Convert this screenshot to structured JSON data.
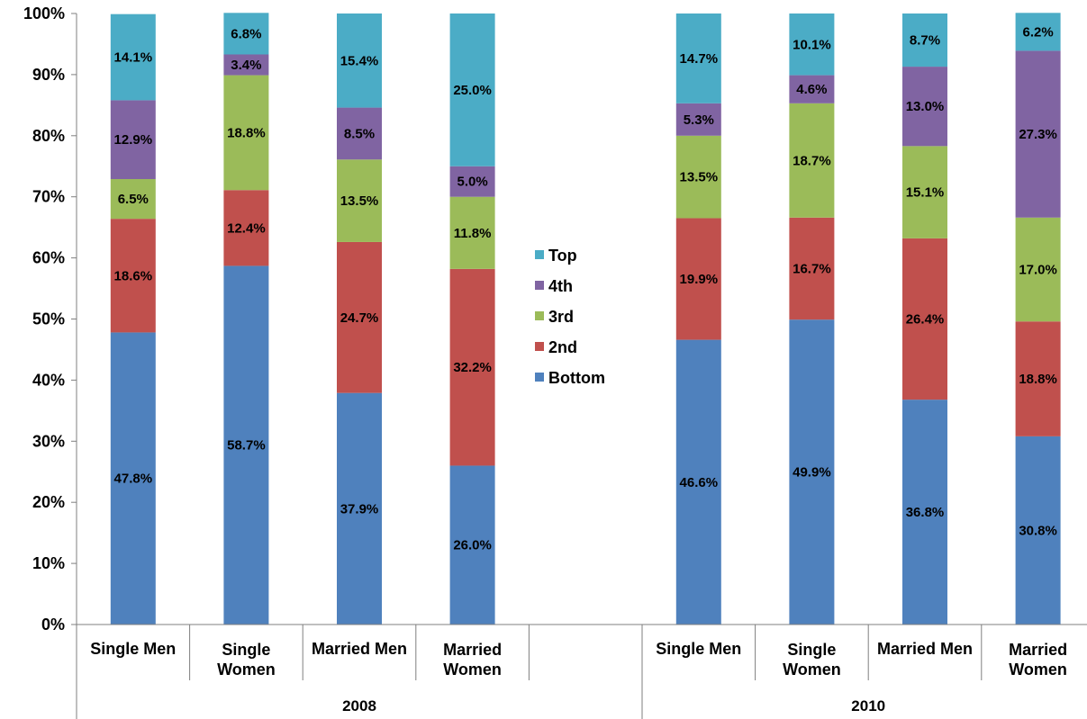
{
  "chart_data": {
    "type": "bar",
    "stacked": true,
    "percent": true,
    "ylim": [
      0,
      100
    ],
    "yticks": [
      "0%",
      "10%",
      "20%",
      "30%",
      "40%",
      "50%",
      "60%",
      "70%",
      "80%",
      "90%",
      "100%"
    ],
    "grid": false,
    "legend_position": "center",
    "groups": [
      {
        "label": "2008",
        "categories": [
          "Single Men",
          "Single Women",
          "Married Men",
          "Married Women"
        ]
      },
      {
        "label": "2010",
        "categories": [
          "Single Men",
          "Single Women",
          "Married Men",
          "Married Women"
        ]
      }
    ],
    "series": [
      {
        "name": "Bottom",
        "color": "#4f81bd",
        "values": [
          47.8,
          58.7,
          37.9,
          26.0,
          46.6,
          49.9,
          36.8,
          30.8
        ],
        "labels": [
          "47.8%",
          "58.7%",
          "37.9%",
          "26.0%",
          "46.6%",
          "49.9%",
          "36.8%",
          "30.8%"
        ]
      },
      {
        "name": "2nd",
        "color": "#c0504d",
        "values": [
          18.6,
          12.4,
          24.7,
          32.2,
          19.9,
          16.7,
          26.4,
          18.8
        ],
        "labels": [
          "18.6%",
          "12.4%",
          "24.7%",
          "32.2%",
          "19.9%",
          "16.7%",
          "26.4%",
          "18.8%"
        ]
      },
      {
        "name": "3rd",
        "color": "#9bbb59",
        "values": [
          6.5,
          18.8,
          13.5,
          11.8,
          13.5,
          18.7,
          15.1,
          17.0
        ],
        "labels": [
          "6.5%",
          "18.8%",
          "13.5%",
          "11.8%",
          "13.5%",
          "18.7%",
          "15.1%",
          "17.0%"
        ]
      },
      {
        "name": "4th",
        "color": "#8064a2",
        "values": [
          12.9,
          3.4,
          8.5,
          5.0,
          5.3,
          4.6,
          13.0,
          27.3
        ],
        "labels": [
          "12.9%",
          "3.4%",
          "8.5%",
          "5.0%",
          "5.3%",
          "4.6%",
          "13.0%",
          "27.3%"
        ]
      },
      {
        "name": "Top",
        "color": "#4bacc6",
        "values": [
          14.1,
          6.8,
          15.4,
          25.0,
          14.7,
          10.1,
          8.7,
          6.2
        ],
        "labels": [
          "14.1%",
          "6.8%",
          "15.4%",
          "25.0%",
          "14.7%",
          "10.1%",
          "8.7%",
          "6.2%"
        ]
      }
    ],
    "legend_order": [
      "Top",
      "4th",
      "3rd",
      "2nd",
      "Bottom"
    ]
  }
}
